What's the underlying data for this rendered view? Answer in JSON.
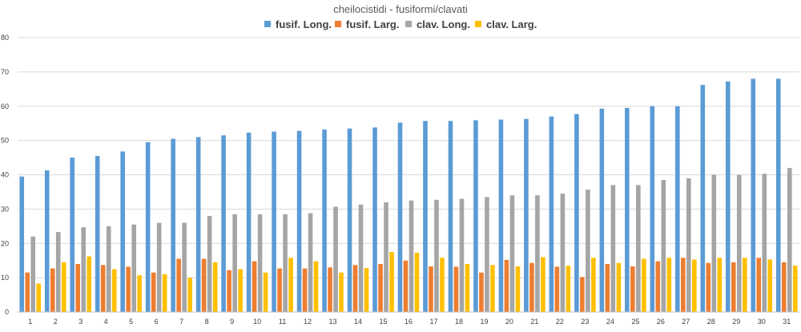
{
  "chart_data": {
    "type": "bar",
    "title": "cheilocistidi - fusiformi/clavati",
    "xlabel": "",
    "ylabel": "",
    "ylim": [
      0,
      80
    ],
    "yticks": [
      "0",
      "10",
      "20",
      "30",
      "40",
      "50",
      "60",
      "70",
      "80"
    ],
    "grid": true,
    "legend_position": "top",
    "categories": [
      "1",
      "2",
      "3",
      "4",
      "5",
      "6",
      "7",
      "8",
      "9",
      "10",
      "11",
      "12",
      "13",
      "14",
      "15",
      "16",
      "17",
      "18",
      "19",
      "20",
      "21",
      "22",
      "23",
      "24",
      "25",
      "26",
      "27",
      "28",
      "29",
      "30",
      "31"
    ],
    "series": [
      {
        "name": "fusif. Long.",
        "color": "#5b9bd5",
        "values": [
          39.5,
          41.3,
          45.0,
          45.5,
          46.8,
          49.5,
          50.5,
          51.0,
          51.5,
          52.3,
          52.6,
          52.8,
          53.2,
          53.5,
          53.8,
          55.2,
          55.7,
          55.7,
          55.9,
          56.1,
          56.3,
          57.0,
          57.7,
          59.3,
          59.5,
          60.0,
          60.0,
          66.2,
          67.2,
          68.0,
          68.0
        ]
      },
      {
        "name": "fusif. Larg.",
        "color": "#ed7d31",
        "values": [
          11.5,
          12.7,
          14.0,
          13.7,
          13.2,
          11.5,
          15.5,
          15.5,
          12.2,
          14.8,
          12.7,
          12.7,
          13.0,
          13.7,
          14.0,
          15.0,
          13.3,
          13.2,
          11.5,
          15.2,
          14.3,
          13.2,
          10.2,
          14.0,
          13.3,
          14.8,
          15.8,
          14.3,
          14.5,
          15.8,
          14.5
        ]
      },
      {
        "name": "clav. Long.",
        "color": "#a5a5a5",
        "values": [
          22.0,
          23.3,
          24.7,
          25.0,
          25.5,
          26.0,
          26.0,
          28.0,
          28.5,
          28.5,
          28.5,
          28.8,
          30.7,
          31.3,
          32.0,
          32.5,
          32.7,
          33.0,
          33.5,
          34.0,
          34.0,
          34.5,
          35.7,
          37.0,
          37.0,
          38.5,
          39.0,
          40.0,
          40.0,
          40.3,
          42.0
        ]
      },
      {
        "name": "clav. Larg.",
        "color": "#ffc000",
        "values": [
          8.3,
          14.5,
          16.2,
          12.5,
          10.7,
          11.0,
          10.0,
          14.5,
          12.5,
          11.5,
          15.8,
          14.8,
          11.5,
          12.8,
          17.5,
          17.3,
          15.8,
          14.0,
          13.7,
          13.3,
          16.0,
          13.5,
          15.8,
          14.3,
          15.5,
          15.8,
          15.3,
          15.8,
          15.8,
          15.3,
          13.5
        ]
      }
    ]
  }
}
